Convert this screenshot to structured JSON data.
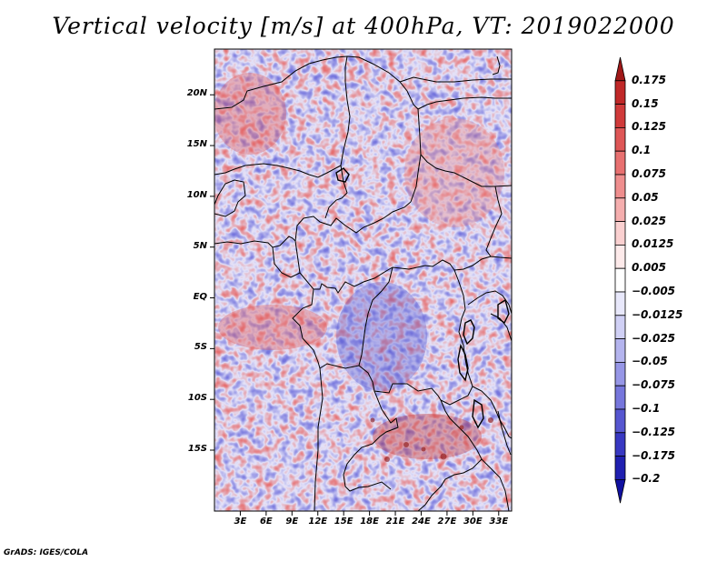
{
  "title": "Vertical velocity [m/s] at 400hPa, VT: 2019022000",
  "footer": "GrADS: IGES/COLA",
  "map": {
    "lon_range": [
      0,
      34.5
    ],
    "lat_range": [
      -21,
      24.5
    ],
    "lat_ticks": [
      {
        "value": 20,
        "label": "20N"
      },
      {
        "value": 15,
        "label": "15N"
      },
      {
        "value": 10,
        "label": "10N"
      },
      {
        "value": 5,
        "label": "5N"
      },
      {
        "value": 0,
        "label": "EQ"
      },
      {
        "value": -5,
        "label": "5S"
      },
      {
        "value": -10,
        "label": "10S"
      },
      {
        "value": -15,
        "label": "15S"
      }
    ],
    "lon_ticks": [
      {
        "value": 3,
        "label": "3E"
      },
      {
        "value": 6,
        "label": "6E"
      },
      {
        "value": 9,
        "label": "9E"
      },
      {
        "value": 12,
        "label": "12E"
      },
      {
        "value": 15,
        "label": "15E"
      },
      {
        "value": 18,
        "label": "18E"
      },
      {
        "value": 21,
        "label": "21E"
      },
      {
        "value": 24,
        "label": "24E"
      },
      {
        "value": 27,
        "label": "27E"
      },
      {
        "value": 30,
        "label": "30E"
      },
      {
        "value": 33,
        "label": "33E"
      }
    ]
  },
  "colorbar": {
    "labels": [
      "0.175",
      "0.15",
      "0.125",
      "0.1",
      "0.075",
      "0.05",
      "0.025",
      "0.0125",
      "0.005",
      "−0.005",
      "−0.0125",
      "−0.025",
      "−0.05",
      "−0.075",
      "−0.1",
      "−0.125",
      "−0.175",
      "−0.2"
    ],
    "colors": [
      "#a01818",
      "#c02828",
      "#d03a3a",
      "#de5656",
      "#e87070",
      "#ef8e8e",
      "#f5aeae",
      "#fad0d0",
      "#fdeaea",
      "#ffffff",
      "#e8e8fb",
      "#d0d0f5",
      "#b4b4ee",
      "#9696e6",
      "#7676dc",
      "#5656d0",
      "#3838c2",
      "#2020b0",
      "#1010a0"
    ]
  }
}
